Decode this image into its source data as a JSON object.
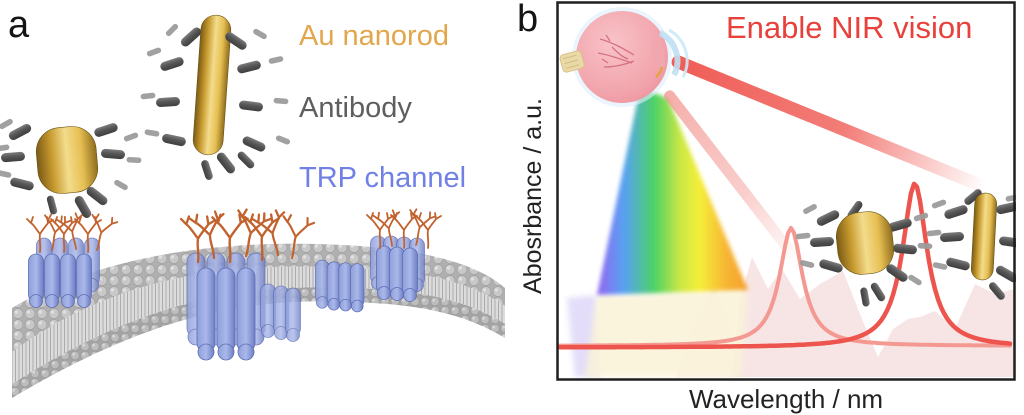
{
  "panel_a": {
    "label": "a",
    "legend": [
      {
        "id": "au-nanorod",
        "label": "Au nanorod",
        "color": "#E2A64C"
      },
      {
        "id": "antibody",
        "label": "Antibody",
        "color": "#5E5E5E"
      },
      {
        "id": "trp-channel",
        "label": "TRP channel",
        "color": "#7080E5"
      }
    ],
    "illustration": "Gold nanorods (short and long) decorated with gray antibodies above a curved gray lipid-bilayer membrane containing periwinkle TRP channel clusters with orange glycan chains"
  },
  "panel_b": {
    "label": "b",
    "title": "Enable NIR vision",
    "title_color": "#E8413B",
    "y_axis_label": "Abosrbance / a.u.",
    "x_axis_label": "Wavelength / nm",
    "illustration": "Eye emitting a visible rainbow cone and red NIR beams toward two plasmon absorbance peaks; short Au nanorod near the first peak, long Au nanorod near the second"
  },
  "chart_data": {
    "type": "line",
    "title": "Enable NIR vision",
    "xlabel": "Wavelength / nm",
    "ylabel": "Abosrbance / a.u.",
    "tick_labels": "none (schematic, arbitrary units)",
    "grid": false,
    "legend_position": "none",
    "series": [
      {
        "name": "short Au nanorod plasmon band (visible/red)",
        "color": "#F49992",
        "stroke_width": 4,
        "baseline_frac": 0.908,
        "peak_center_frac": 0.511,
        "peak_height_frac": 0.311,
        "peak_hwhm_frac": 0.0304
      },
      {
        "name": "long Au nanorod plasmon band (NIR)",
        "color": "#ED544D",
        "stroke_width": 4.5,
        "baseline_frac": 0.912,
        "peak_center_frac": 0.78,
        "peak_height_frac": 0.432,
        "peak_hwhm_frac": 0.0326
      }
    ],
    "annotations": [
      "eye illustration top-left",
      "rainbow visible-spectrum cone from eye",
      "strong red NIR beam toward second peak",
      "faint red beam toward first peak",
      "pale pink jagged absorbance silhouette in background"
    ]
  }
}
